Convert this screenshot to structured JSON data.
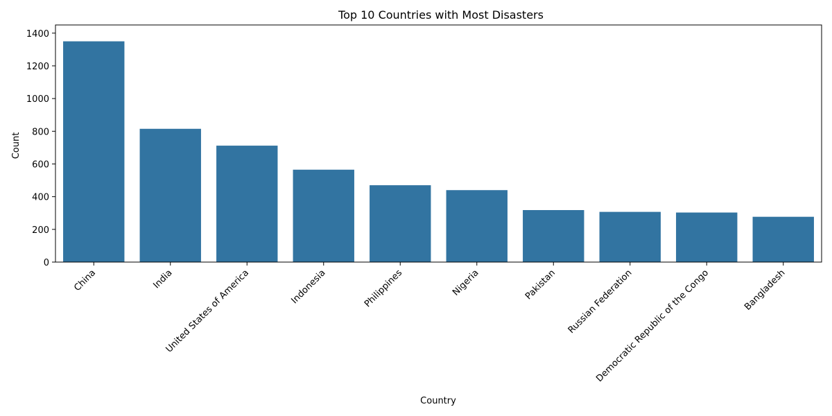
{
  "chart_data": {
    "type": "bar",
    "title": "Top 10 Countries with Most Disasters",
    "xlabel": "Country",
    "ylabel": "Count",
    "categories": [
      "China",
      "India",
      "United States of America",
      "Indonesia",
      "Philippines",
      "Nigeria",
      "Pakistan",
      "Russian Federation",
      "Democratic Republic of the Congo",
      "Bangladesh"
    ],
    "values": [
      1350,
      815,
      712,
      565,
      470,
      440,
      318,
      307,
      303,
      277
    ],
    "ylim": [
      0,
      1450
    ],
    "yticks": [
      0,
      200,
      400,
      600,
      800,
      1000,
      1200,
      1400
    ],
    "x_tick_rotation": 45,
    "grid": false,
    "legend": "none",
    "bar_color": "#3274a1"
  }
}
